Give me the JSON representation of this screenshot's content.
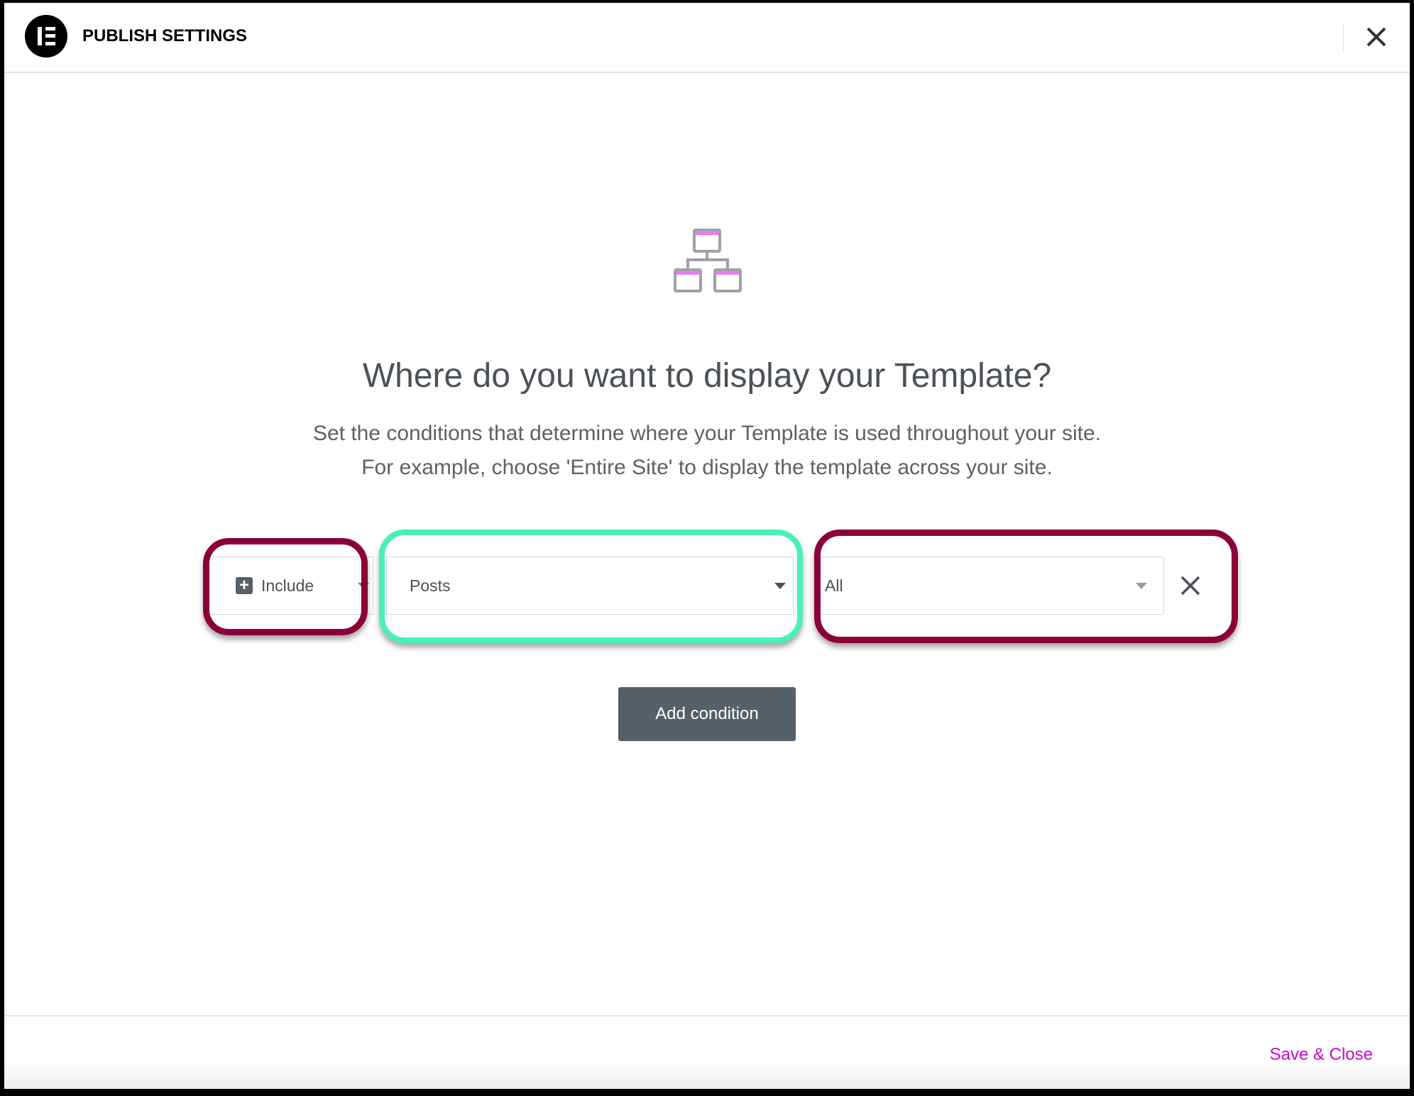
{
  "header": {
    "title": "PUBLISH SETTINGS",
    "logo": "elementor-logo",
    "close_icon": "close-icon"
  },
  "main": {
    "icon": "site-hierarchy-icon",
    "heading": "Where do you want to display your Template?",
    "subtitle_line1": "Set the conditions that determine where your Template is used throughout your site.",
    "subtitle_line2": "For example, choose 'Entire Site' to display the template across your site.",
    "condition": {
      "type": "Include",
      "type_icon": "plus-square-icon",
      "object": "Posts",
      "scope": "All",
      "remove_icon": "close-icon"
    },
    "add_condition_label": "Add condition"
  },
  "footer": {
    "save_close_label": "Save & Close"
  },
  "colors": {
    "accent": "#c80ac8",
    "highlight_maroon": "#8a0038",
    "highlight_teal": "#4af0b8",
    "button": "#556068",
    "icon_pink": "#e97cf5"
  }
}
